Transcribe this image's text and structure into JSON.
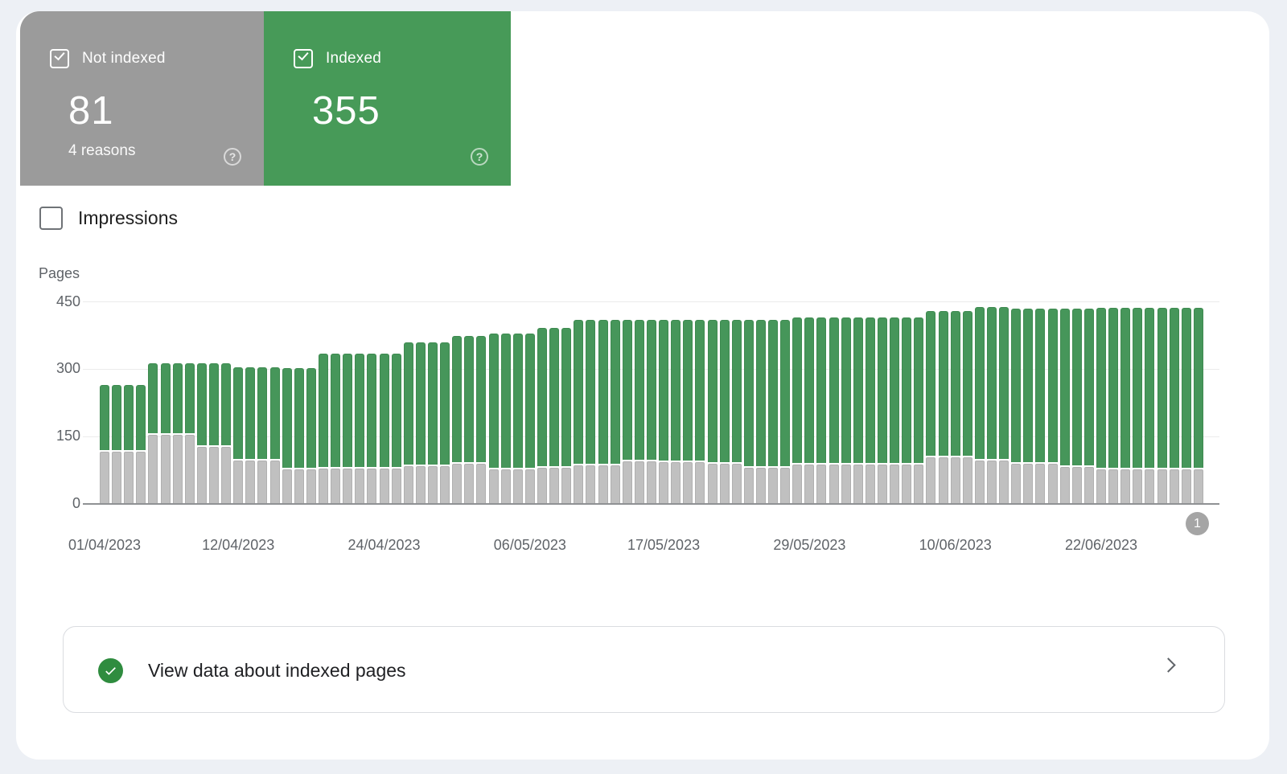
{
  "cards": {
    "not_indexed": {
      "label": "Not indexed",
      "value": "81",
      "sub": "4 reasons",
      "checked": true
    },
    "indexed": {
      "label": "Indexed",
      "value": "355",
      "checked": true
    }
  },
  "impressions_toggle": {
    "label": "Impressions",
    "checked": false
  },
  "icons": {
    "help_glyph": "?",
    "checkbox_state": "checked",
    "check_circle": "check-circle",
    "chevron": "chevron-right"
  },
  "chart_data": {
    "type": "bar",
    "stacked": true,
    "title": "",
    "xlabel": "",
    "ylabel": "Pages",
    "ylim": [
      0,
      450
    ],
    "y_ticks": [
      0,
      150,
      300,
      450
    ],
    "grid": true,
    "legend_position": "none",
    "pagination_badge": "1",
    "x_tick_labels": [
      "01/04/2023",
      "12/04/2023",
      "24/04/2023",
      "06/05/2023",
      "17/05/2023",
      "29/05/2023",
      "10/06/2023",
      "22/06/2023"
    ],
    "x_tick_indices": [
      0,
      11,
      23,
      35,
      46,
      58,
      70,
      82
    ],
    "dates": [
      "01/04/2023",
      "02/04/2023",
      "03/04/2023",
      "04/04/2023",
      "05/04/2023",
      "06/04/2023",
      "07/04/2023",
      "08/04/2023",
      "09/04/2023",
      "10/04/2023",
      "11/04/2023",
      "12/04/2023",
      "13/04/2023",
      "14/04/2023",
      "15/04/2023",
      "16/04/2023",
      "17/04/2023",
      "18/04/2023",
      "19/04/2023",
      "20/04/2023",
      "21/04/2023",
      "22/04/2023",
      "23/04/2023",
      "24/04/2023",
      "25/04/2023",
      "26/04/2023",
      "27/04/2023",
      "28/04/2023",
      "29/04/2023",
      "30/04/2023",
      "01/05/2023",
      "02/05/2023",
      "03/05/2023",
      "04/05/2023",
      "05/05/2023",
      "06/05/2023",
      "07/05/2023",
      "08/05/2023",
      "09/05/2023",
      "10/05/2023",
      "11/05/2023",
      "12/05/2023",
      "13/05/2023",
      "14/05/2023",
      "15/05/2023",
      "16/05/2023",
      "17/05/2023",
      "18/05/2023",
      "19/05/2023",
      "20/05/2023",
      "21/05/2023",
      "22/05/2023",
      "23/05/2023",
      "24/05/2023",
      "25/05/2023",
      "26/05/2023",
      "27/05/2023",
      "28/05/2023",
      "29/05/2023",
      "30/05/2023",
      "31/05/2023",
      "01/06/2023",
      "02/06/2023",
      "03/06/2023",
      "04/06/2023",
      "05/06/2023",
      "06/06/2023",
      "07/06/2023",
      "08/06/2023",
      "09/06/2023",
      "10/06/2023",
      "11/06/2023",
      "12/06/2023",
      "13/06/2023",
      "14/06/2023",
      "15/06/2023",
      "16/06/2023",
      "17/06/2023",
      "18/06/2023",
      "19/06/2023",
      "20/06/2023",
      "21/06/2023",
      "22/06/2023",
      "23/06/2023",
      "24/06/2023",
      "25/06/2023",
      "26/06/2023",
      "27/06/2023",
      "28/06/2023",
      "29/06/2023",
      "30/06/2023"
    ],
    "series": [
      {
        "name": "Not indexed",
        "color": "#c0c0c0",
        "values": [
          120,
          120,
          120,
          120,
          157,
          157,
          157,
          157,
          131,
          131,
          131,
          100,
          100,
          100,
          100,
          80,
          80,
          80,
          82,
          82,
          82,
          82,
          82,
          82,
          82,
          88,
          88,
          88,
          88,
          93,
          93,
          93,
          81,
          81,
          81,
          81,
          84,
          84,
          84,
          90,
          90,
          90,
          90,
          99,
          99,
          99,
          97,
          97,
          97,
          97,
          93,
          93,
          93,
          85,
          85,
          85,
          85,
          91,
          91,
          91,
          91,
          91,
          91,
          91,
          91,
          91,
          91,
          91,
          108,
          108,
          108,
          108,
          100,
          100,
          100,
          93,
          93,
          93,
          93,
          86,
          86,
          86,
          81,
          81,
          81,
          81,
          81,
          81,
          81,
          81,
          81
        ]
      },
      {
        "name": "Indexed",
        "color": "#46965a",
        "values": [
          144,
          144,
          144,
          144,
          157,
          157,
          157,
          157,
          183,
          183,
          183,
          205,
          205,
          205,
          205,
          223,
          223,
          223,
          253,
          253,
          253,
          253,
          253,
          253,
          253,
          272,
          272,
          272,
          272,
          281,
          281,
          281,
          299,
          299,
          299,
          299,
          308,
          308,
          308,
          320,
          320,
          320,
          320,
          311,
          311,
          311,
          313,
          313,
          313,
          313,
          317,
          317,
          317,
          325,
          325,
          325,
          325,
          325,
          325,
          325,
          325,
          325,
          325,
          325,
          325,
          325,
          325,
          325,
          322,
          322,
          322,
          322,
          339,
          339,
          339,
          342,
          342,
          342,
          342,
          349,
          349,
          349,
          355,
          355,
          355,
          355,
          355,
          355,
          355,
          355,
          355
        ]
      }
    ]
  },
  "footer_card": {
    "label": "View data about indexed pages"
  },
  "colors": {
    "page_bg": "#edf0f5",
    "panel_bg": "#ffffff",
    "card_gray": "#9b9b9b",
    "card_green": "#479a58",
    "bar_green": "#46965a",
    "bar_gray": "#c0c0c0",
    "axis_text": "#5f6368",
    "footer_check": "#2f8c3f"
  }
}
